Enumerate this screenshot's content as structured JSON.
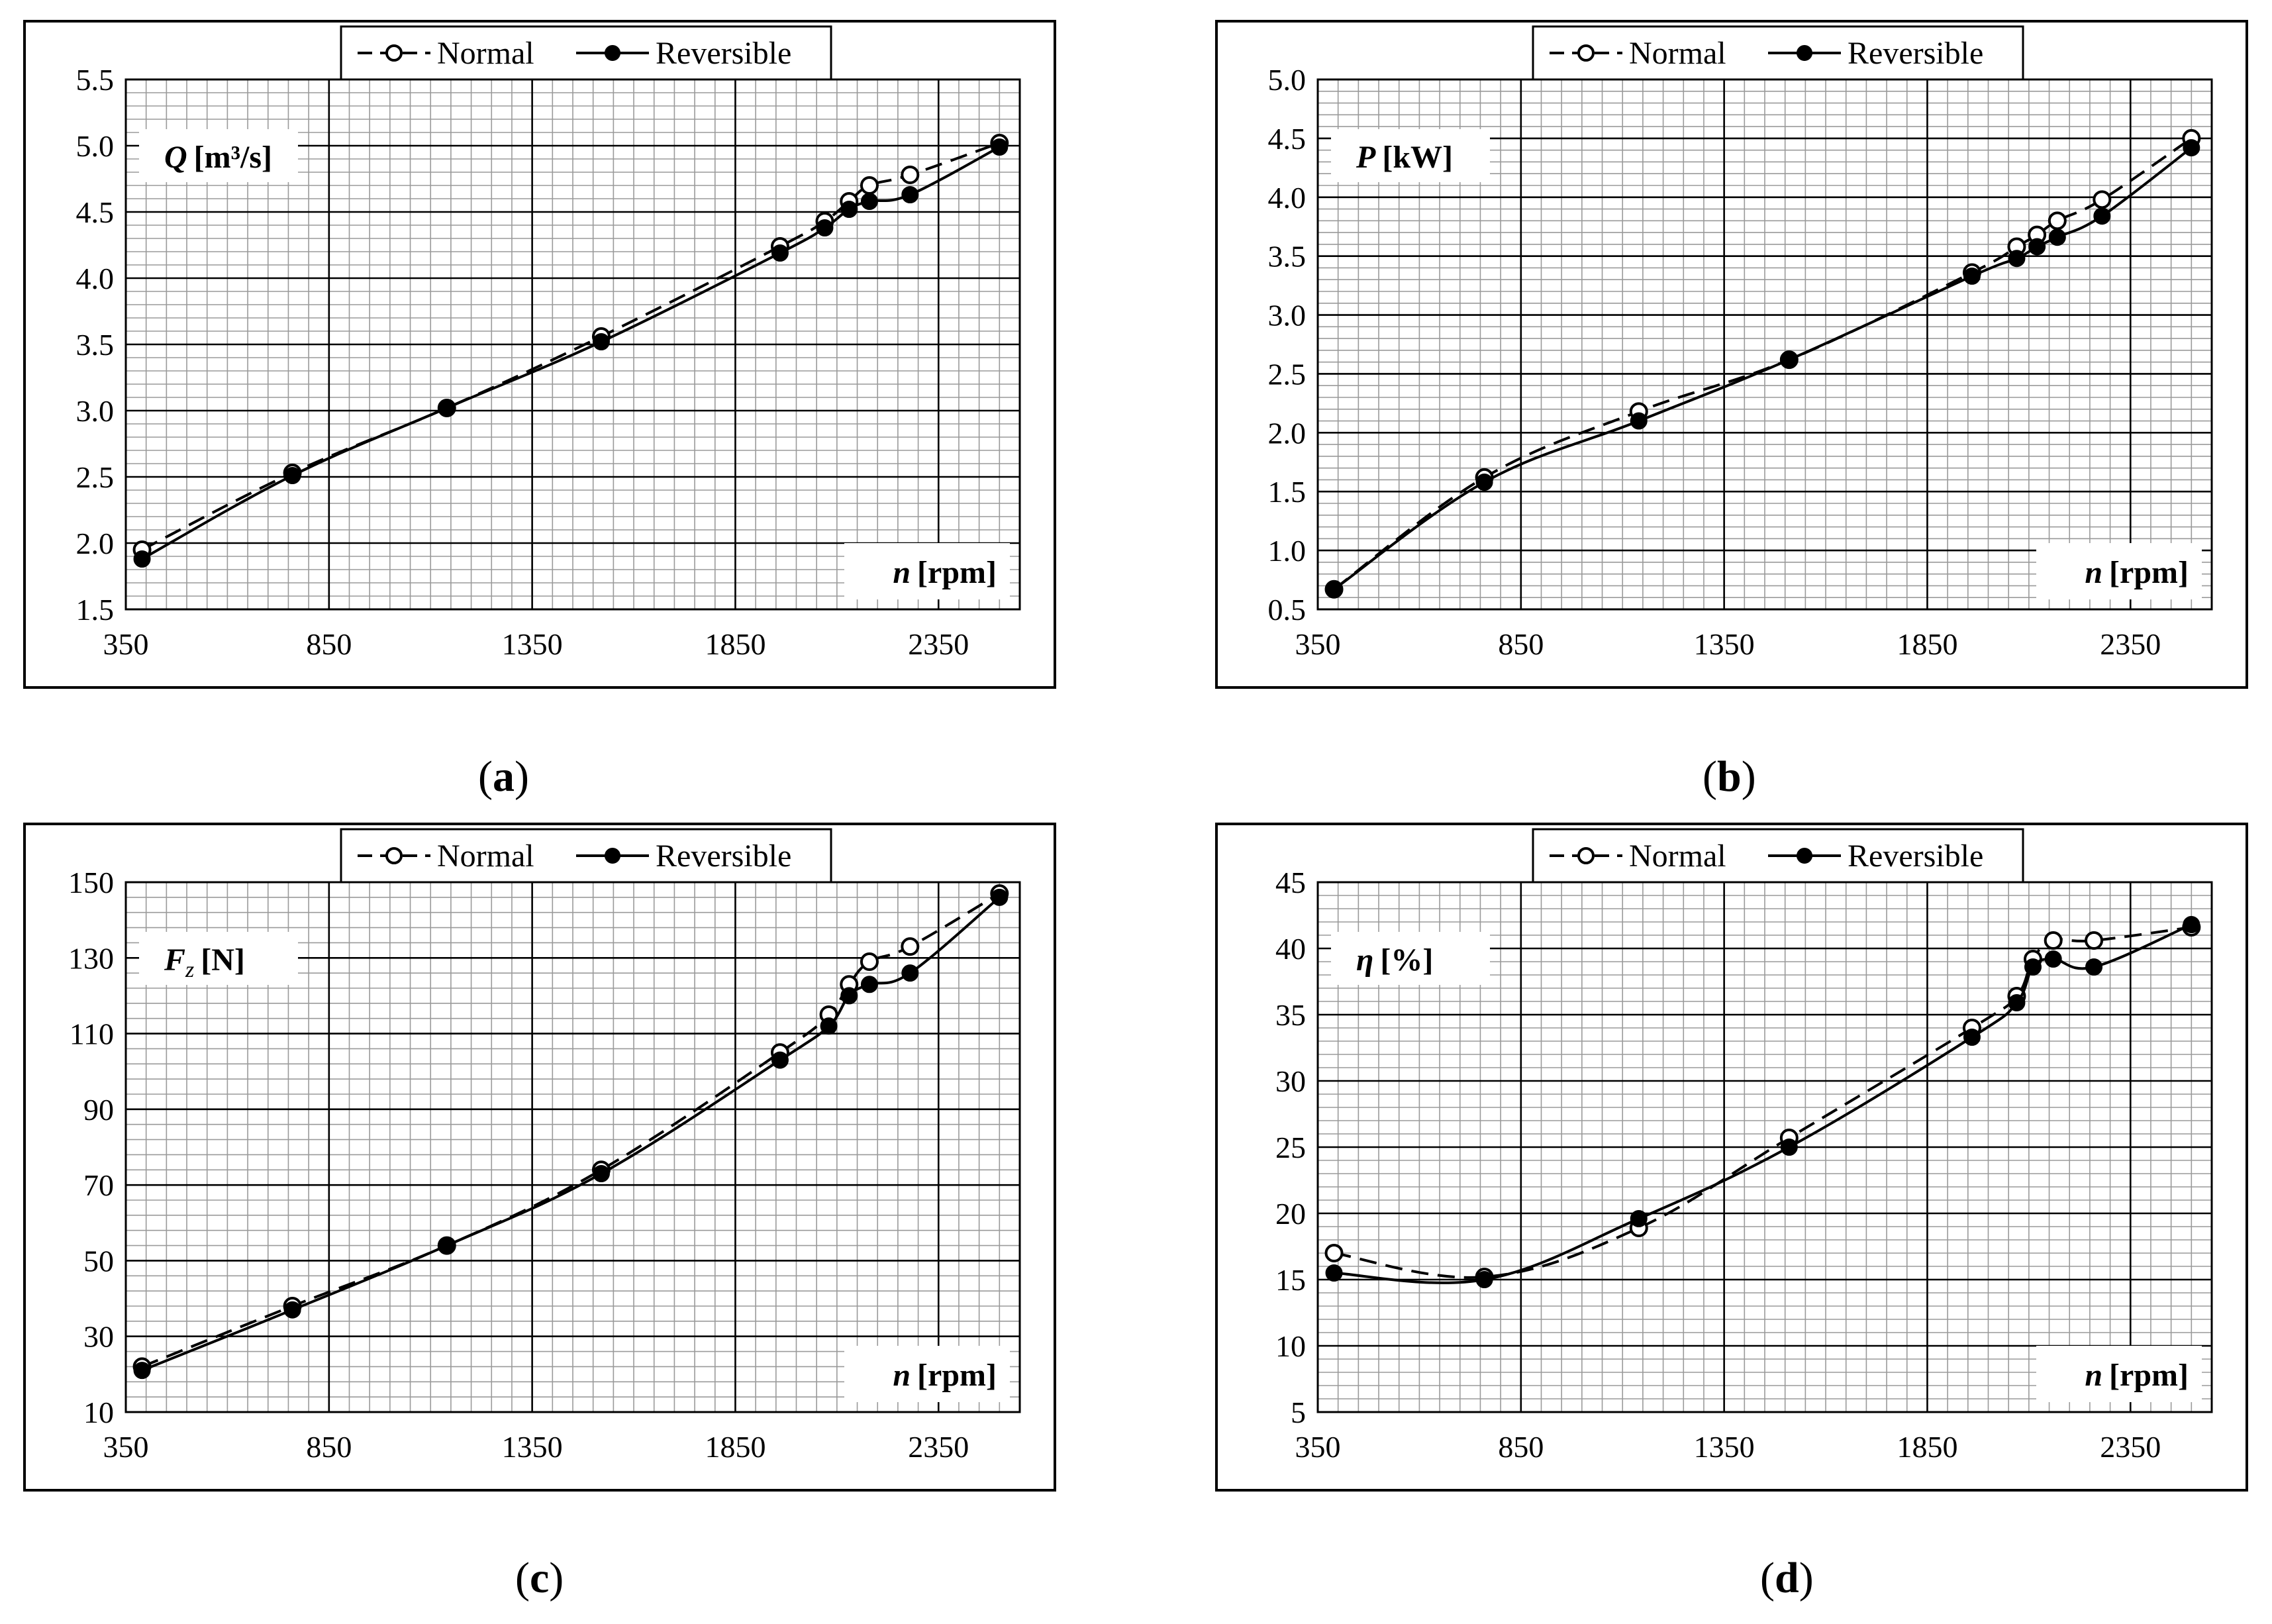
{
  "figure": {
    "legend": {
      "normal": "Normal",
      "reversible": "Reversible"
    },
    "x_axis_label_var": "n",
    "x_axis_label_unit": "[rpm]"
  },
  "chart_data": [
    {
      "id": "a",
      "type": "line",
      "caption_letter": "a",
      "ylabel_var": "Q",
      "ylabel_unit": "[m³/s]",
      "xlim": [
        350,
        2550
      ],
      "xticks": [
        350,
        850,
        1350,
        1850,
        2350
      ],
      "xtick_labels": [
        "350",
        "850",
        "1350",
        "1850",
        "2350"
      ],
      "ylim": [
        1.5,
        5.5
      ],
      "yticks": [
        1.5,
        2.0,
        2.5,
        3.0,
        3.5,
        4.0,
        4.5,
        5.0,
        5.5
      ],
      "ytick_labels": [
        "1.5",
        "2.0",
        "2.5",
        "3.0",
        "3.5",
        "4.0",
        "4.5",
        "5.0",
        "5.5"
      ],
      "series": [
        {
          "name": "Normal",
          "style": "dashed",
          "marker": "open",
          "x": [
            390,
            760,
            1140,
            1520,
            1960,
            2070,
            2130,
            2180,
            2280,
            2500
          ],
          "y": [
            1.95,
            2.53,
            3.02,
            3.56,
            4.24,
            4.43,
            4.58,
            4.7,
            4.78,
            5.02
          ]
        },
        {
          "name": "Reversible",
          "style": "solid",
          "marker": "filled",
          "x": [
            390,
            760,
            1140,
            1520,
            1960,
            2070,
            2130,
            2180,
            2280,
            2500
          ],
          "y": [
            1.88,
            2.51,
            3.02,
            3.52,
            4.19,
            4.38,
            4.52,
            4.58,
            4.63,
            4.99
          ]
        }
      ]
    },
    {
      "id": "b",
      "type": "line",
      "caption_letter": "b",
      "ylabel_var": "P",
      "ylabel_unit": "[kW]",
      "xlim": [
        350,
        2550
      ],
      "xticks": [
        350,
        850,
        1350,
        1850,
        2350
      ],
      "xtick_labels": [
        "350",
        "850",
        "1350",
        "1850",
        "2350"
      ],
      "ylim": [
        0.5,
        5.0
      ],
      "yticks": [
        0.5,
        1.0,
        1.5,
        2.0,
        2.5,
        3.0,
        3.5,
        4.0,
        4.5,
        5.0
      ],
      "ytick_labels": [
        "0.5",
        "1.0",
        "1.5",
        "2.0",
        "2.5",
        "3.0",
        "3.5",
        "4.0",
        "4.5",
        "5.0"
      ],
      "series": [
        {
          "name": "Normal",
          "style": "dashed",
          "marker": "open",
          "x": [
            390,
            760,
            1140,
            1510,
            1960,
            2070,
            2120,
            2170,
            2280,
            2500
          ],
          "y": [
            0.67,
            1.62,
            2.18,
            2.62,
            3.36,
            3.58,
            3.68,
            3.8,
            3.98,
            4.5
          ]
        },
        {
          "name": "Reversible",
          "style": "solid",
          "marker": "filled",
          "x": [
            390,
            760,
            1140,
            1510,
            1960,
            2070,
            2120,
            2170,
            2280,
            2500
          ],
          "y": [
            0.67,
            1.58,
            2.1,
            2.62,
            3.33,
            3.48,
            3.58,
            3.66,
            3.84,
            4.42
          ]
        }
      ]
    },
    {
      "id": "c",
      "type": "line",
      "caption_letter": "c",
      "ylabel_var": "F",
      "ylabel_sub": "z",
      "ylabel_unit": "[N]",
      "xlim": [
        350,
        2550
      ],
      "xticks": [
        350,
        850,
        1350,
        1850,
        2350
      ],
      "xtick_labels": [
        "350",
        "850",
        "1350",
        "1850",
        "2350"
      ],
      "ylim": [
        10,
        150
      ],
      "yticks": [
        10,
        30,
        50,
        70,
        90,
        110,
        130,
        150
      ],
      "ytick_labels": [
        "10",
        "30",
        "50",
        "70",
        "90",
        "110",
        "130",
        "150"
      ],
      "series": [
        {
          "name": "Normal",
          "style": "dashed",
          "marker": "open",
          "x": [
            390,
            760,
            1140,
            1520,
            1960,
            2080,
            2130,
            2180,
            2280,
            2500
          ],
          "y": [
            22,
            38,
            54,
            74,
            105,
            115,
            123,
            129,
            133,
            147
          ]
        },
        {
          "name": "Reversible",
          "style": "solid",
          "marker": "filled",
          "x": [
            390,
            760,
            1140,
            1520,
            1960,
            2080,
            2130,
            2180,
            2280,
            2500
          ],
          "y": [
            21,
            37,
            54,
            73,
            103,
            112,
            120,
            123,
            126,
            146
          ]
        }
      ]
    },
    {
      "id": "d",
      "type": "line",
      "caption_letter": "d",
      "ylabel_var": "η",
      "ylabel_unit": "[%]",
      "xlim": [
        350,
        2550
      ],
      "xticks": [
        350,
        850,
        1350,
        1850,
        2350
      ],
      "xtick_labels": [
        "350",
        "850",
        "1350",
        "1850",
        "2350"
      ],
      "ylim": [
        5,
        45
      ],
      "yticks": [
        5,
        10,
        15,
        20,
        25,
        30,
        35,
        40,
        45
      ],
      "ytick_labels": [
        "5",
        "10",
        "15",
        "20",
        "25",
        "30",
        "35",
        "40",
        "45"
      ],
      "series": [
        {
          "name": "Normal",
          "style": "dashed",
          "marker": "open",
          "x": [
            390,
            760,
            1140,
            1510,
            1960,
            2070,
            2110,
            2160,
            2260,
            2500
          ],
          "y": [
            17,
            15.2,
            18.9,
            25.7,
            34,
            36.4,
            39.2,
            40.6,
            40.6,
            41.6
          ]
        },
        {
          "name": "Reversible",
          "style": "solid",
          "marker": "filled",
          "x": [
            390,
            760,
            1140,
            1510,
            1960,
            2070,
            2110,
            2160,
            2260,
            2500
          ],
          "y": [
            15.5,
            15,
            19.6,
            25,
            33.3,
            35.9,
            38.6,
            39.2,
            38.6,
            41.8
          ]
        }
      ]
    }
  ]
}
